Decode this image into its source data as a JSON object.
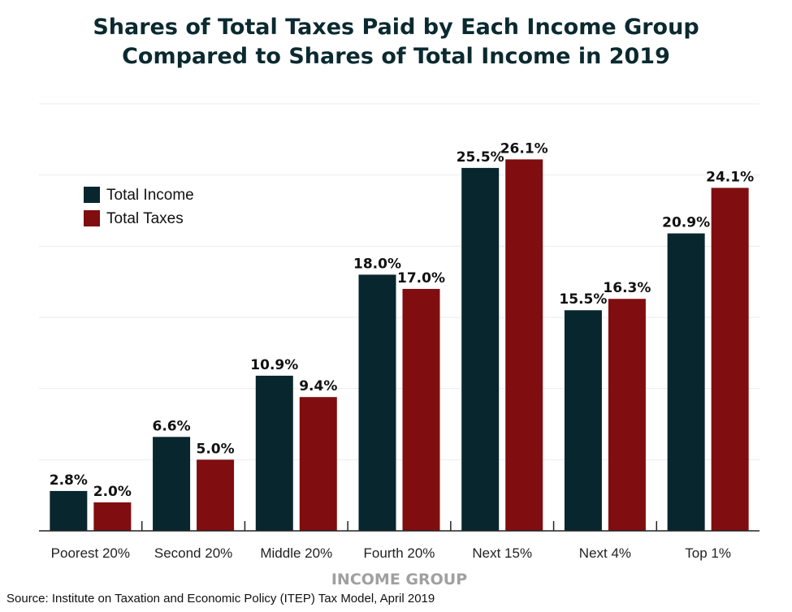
{
  "chart_data": {
    "type": "bar",
    "title": "Shares of Total Taxes Paid by Each Income Group Compared to Shares of Total Income in 2019",
    "title_lines": [
      "Shares of Total Taxes Paid by Each Income Group",
      "Compared to Shares of Total Income in 2019"
    ],
    "xlabel": "INCOME GROUP",
    "ylabel": "",
    "ylim": [
      0,
      30
    ],
    "grid": true,
    "legend_position": "top-left",
    "categories": [
      "Poorest 20%",
      "Second 20%",
      "Middle 20%",
      "Fourth 20%",
      "Next 15%",
      "Next 4%",
      "Top 1%"
    ],
    "series": [
      {
        "name": "Total Income",
        "color": "#08262d",
        "values": [
          2.8,
          6.6,
          10.9,
          18.0,
          25.5,
          15.5,
          20.9
        ]
      },
      {
        "name": "Total Taxes",
        "color": "#800d0f",
        "values": [
          2.0,
          5.0,
          9.4,
          17.0,
          26.1,
          16.3,
          24.1
        ]
      }
    ],
    "source": "Source: Institute on Taxation and Economic Policy (ITEP) Tax Model, April 2019"
  }
}
